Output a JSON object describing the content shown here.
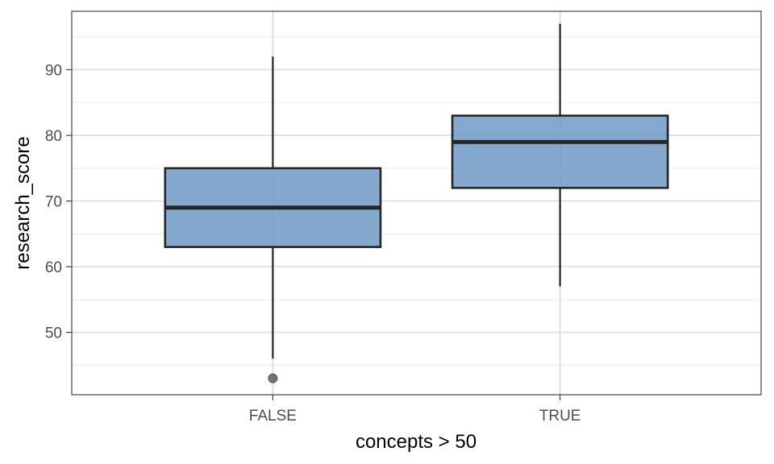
{
  "chart_data": {
    "type": "box",
    "title": "",
    "xlabel": "concepts > 50",
    "ylabel": "research_score",
    "categories": [
      "FALSE",
      "TRUE"
    ],
    "ylim": [
      40.5,
      98.9
    ],
    "y_major_ticks": [
      50,
      60,
      70,
      80,
      90
    ],
    "y_minor_ticks": [
      45,
      55,
      65,
      75,
      85,
      95
    ],
    "grid": true,
    "fill_color": "#7099c6",
    "outline_color": "#262626",
    "outlier_color": "#666666",
    "series": [
      {
        "category": "FALSE",
        "whisker_low": 46,
        "q1": 63,
        "median": 69,
        "q3": 75,
        "whisker_high": 92,
        "outliers": [
          43
        ]
      },
      {
        "category": "TRUE",
        "whisker_low": 57,
        "q1": 72,
        "median": 79,
        "q3": 83,
        "whisker_high": 97,
        "outliers": []
      }
    ]
  }
}
